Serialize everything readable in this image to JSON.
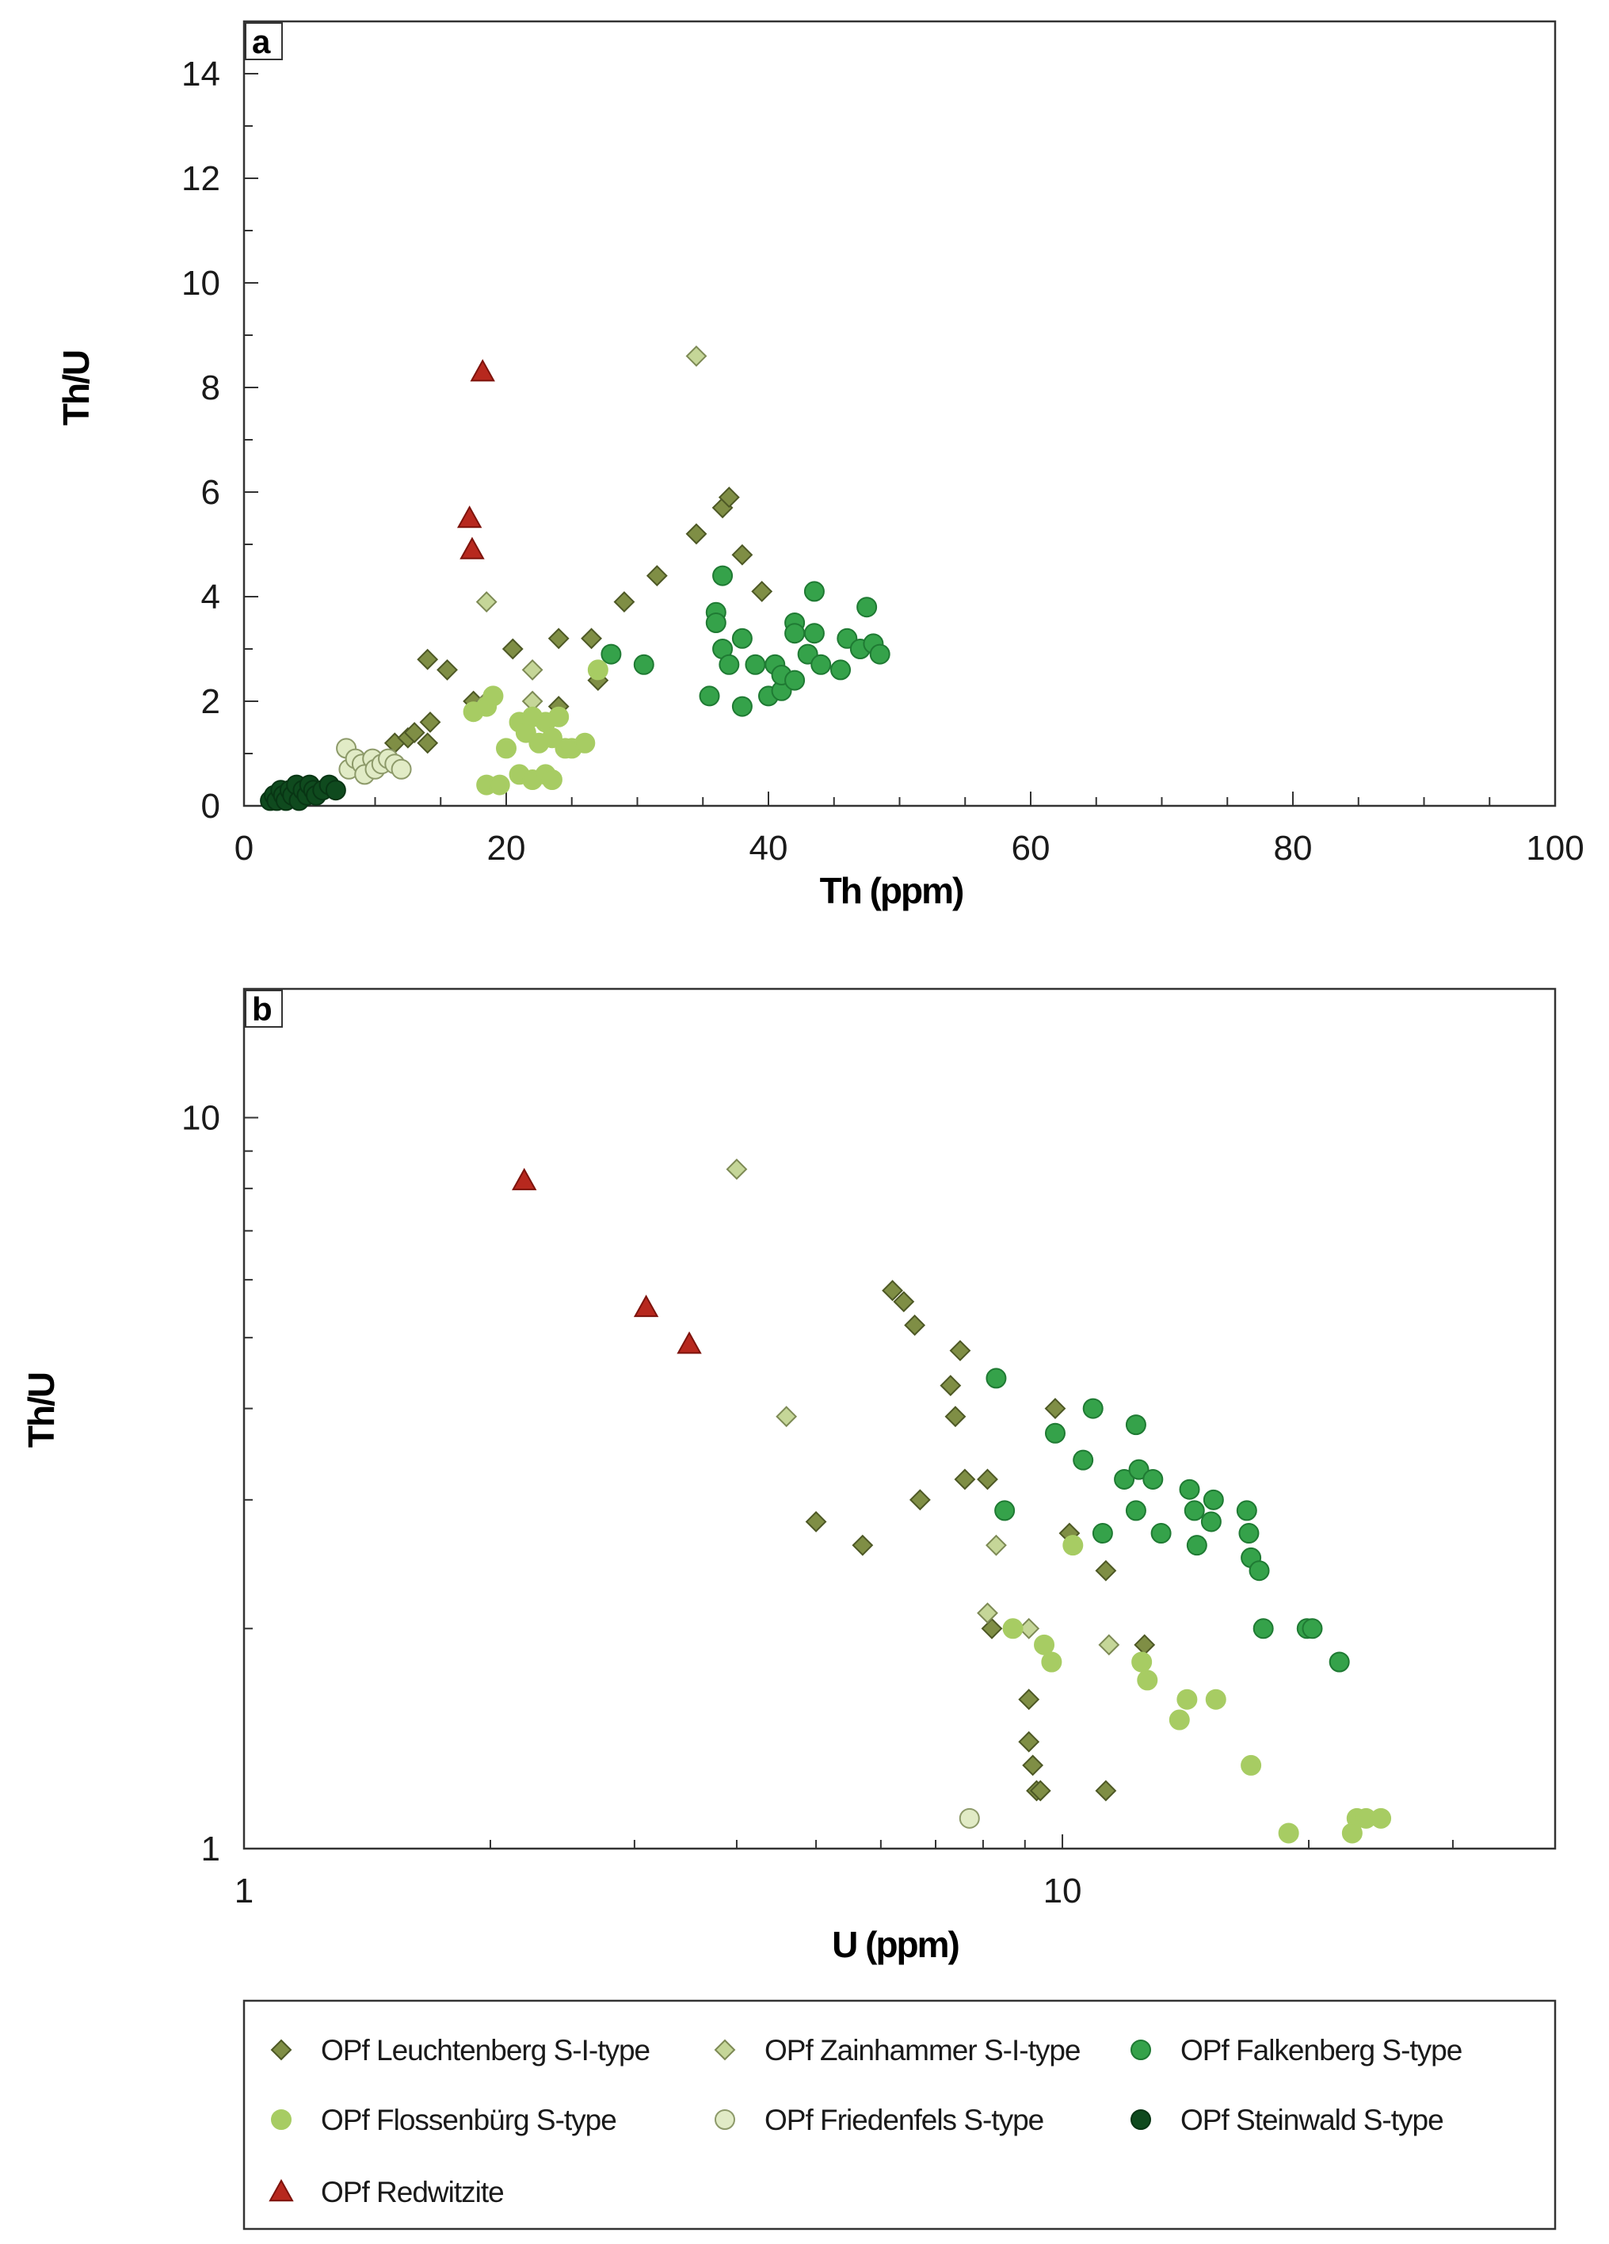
{
  "chart_data": [
    {
      "panel": "a",
      "type": "scatter",
      "xlabel": "Th (ppm)",
      "ylabel": "Th/U",
      "xscale": "linear",
      "yscale": "linear",
      "xlim": [
        0,
        100
      ],
      "ylim": [
        0,
        15
      ],
      "xticks": [
        0,
        20,
        40,
        60,
        80,
        100
      ],
      "xtick_labels": [
        "0",
        "20",
        "40",
        "60",
        "80",
        "100"
      ],
      "yticks": [
        0,
        2,
        4,
        6,
        8,
        10,
        12,
        14
      ],
      "ytick_labels": [
        "0",
        "2",
        "4",
        "6",
        "8",
        "10",
        "12",
        "14"
      ],
      "series": [
        {
          "name": "OPf Leuchtenberg S-I-type",
          "marker": "diamond",
          "points": [
            [
              11.5,
              1.2
            ],
            [
              12.5,
              1.3
            ],
            [
              13,
              1.4
            ],
            [
              14,
              1.2
            ],
            [
              14.2,
              1.6
            ],
            [
              14,
              2.8
            ],
            [
              15.5,
              2.6
            ],
            [
              17.5,
              2.0
            ],
            [
              18.5,
              2.0
            ],
            [
              20.5,
              3.0
            ],
            [
              24,
              3.2
            ],
            [
              24,
              1.9
            ],
            [
              26.5,
              3.2
            ],
            [
              27,
              2.4
            ],
            [
              29,
              3.9
            ],
            [
              31.5,
              4.4
            ],
            [
              34.5,
              5.2
            ],
            [
              36.5,
              5.7
            ],
            [
              37,
              5.9
            ],
            [
              38,
              4.8
            ],
            [
              39.5,
              4.1
            ]
          ]
        },
        {
          "name": "OPf Zainhammer S-I-type",
          "marker": "diamond",
          "points": [
            [
              34.5,
              8.6
            ],
            [
              18.5,
              3.9
            ],
            [
              22,
              2.6
            ],
            [
              22,
              2.0
            ],
            [
              18.5,
              2.0
            ]
          ]
        },
        {
          "name": "OPf Falkenberg S-type",
          "marker": "circle",
          "points": [
            [
              28,
              2.9
            ],
            [
              30.5,
              2.7
            ],
            [
              35.5,
              2.1
            ],
            [
              36,
              3.7
            ],
            [
              36,
              3.5
            ],
            [
              36.5,
              4.4
            ],
            [
              36.5,
              3.0
            ],
            [
              37,
              2.7
            ],
            [
              38,
              3.2
            ],
            [
              38,
              1.9
            ],
            [
              39,
              2.7
            ],
            [
              40,
              2.1
            ],
            [
              40.5,
              2.7
            ],
            [
              41,
              2.2
            ],
            [
              41,
              2.5
            ],
            [
              42,
              3.5
            ],
            [
              42,
              3.3
            ],
            [
              42,
              2.4
            ],
            [
              43,
              2.9
            ],
            [
              43.5,
              4.1
            ],
            [
              43.5,
              3.3
            ],
            [
              44,
              2.7
            ],
            [
              45.5,
              2.6
            ],
            [
              46,
              3.2
            ],
            [
              47,
              3.0
            ],
            [
              47.5,
              3.8
            ],
            [
              48,
              3.1
            ],
            [
              48.5,
              2.9
            ]
          ]
        },
        {
          "name": "OPf Flossenbürg S-type",
          "marker": "circle",
          "points": [
            [
              17.5,
              1.8
            ],
            [
              18.5,
              1.9
            ],
            [
              19,
              2.1
            ],
            [
              20,
              1.1
            ],
            [
              21,
              1.6
            ],
            [
              21.5,
              1.4
            ],
            [
              22,
              1.7
            ],
            [
              22.5,
              1.2
            ],
            [
              23,
              1.6
            ],
            [
              23.5,
              1.3
            ],
            [
              24,
              1.7
            ],
            [
              24.5,
              1.1
            ],
            [
              25,
              1.1
            ],
            [
              26,
              1.2
            ],
            [
              27,
              2.6
            ],
            [
              18.5,
              0.4
            ],
            [
              19.5,
              0.4
            ],
            [
              21,
              0.6
            ],
            [
              22,
              0.5
            ],
            [
              23,
              0.6
            ],
            [
              23.5,
              0.5
            ]
          ]
        },
        {
          "name": "OPf Friedenfels S-type",
          "marker": "circle",
          "points": [
            [
              7.8,
              1.1
            ],
            [
              8,
              0.7
            ],
            [
              8.5,
              0.9
            ],
            [
              9,
              0.8
            ],
            [
              9.2,
              0.6
            ],
            [
              9.8,
              0.9
            ],
            [
              10,
              0.7
            ],
            [
              10.5,
              0.8
            ],
            [
              11,
              0.9
            ],
            [
              11.5,
              0.8
            ],
            [
              12,
              0.7
            ]
          ]
        },
        {
          "name": "OPf Steinwald S-type",
          "marker": "circle",
          "points": [
            [
              2,
              0.1
            ],
            [
              2.3,
              0.2
            ],
            [
              2.5,
              0.1
            ],
            [
              2.8,
              0.3
            ],
            [
              3,
              0.2
            ],
            [
              3.2,
              0.1
            ],
            [
              3.5,
              0.3
            ],
            [
              3.7,
              0.2
            ],
            [
              4,
              0.4
            ],
            [
              4.2,
              0.1
            ],
            [
              4.5,
              0.3
            ],
            [
              4.8,
              0.2
            ],
            [
              5,
              0.4
            ],
            [
              5.3,
              0.3
            ],
            [
              5.5,
              0.2
            ],
            [
              6,
              0.3
            ],
            [
              6.5,
              0.4
            ],
            [
              7,
              0.3
            ]
          ]
        },
        {
          "name": "OPf Redwitzite",
          "marker": "triangle",
          "points": [
            [
              18.2,
              8.3
            ],
            [
              17.2,
              5.5
            ],
            [
              17.4,
              4.9
            ]
          ]
        }
      ]
    },
    {
      "panel": "b",
      "type": "scatter",
      "xlabel": "U (ppm)",
      "ylabel": "Th/U",
      "xscale": "log",
      "yscale": "log",
      "xlim": [
        1,
        40
      ],
      "ylim": [
        1,
        15
      ],
      "xticks": [
        1,
        10
      ],
      "xtick_labels": [
        "1",
        "10"
      ],
      "yticks": [
        1,
        10
      ],
      "ytick_labels": [
        "1",
        "10"
      ],
      "series": [
        {
          "name": "OPf Leuchtenberg S-I-type",
          "marker": "diamond",
          "points": [
            [
              6.2,
              5.8
            ],
            [
              6.4,
              5.6
            ],
            [
              6.6,
              5.2
            ],
            [
              7.5,
              4.8
            ],
            [
              7.3,
              4.3
            ],
            [
              7.4,
              3.9
            ],
            [
              8.1,
              3.2
            ],
            [
              7.6,
              3.2
            ],
            [
              6.7,
              3.0
            ],
            [
              5.0,
              2.8
            ],
            [
              5.7,
              2.6
            ],
            [
              9.8,
              4.0
            ],
            [
              10.2,
              2.7
            ],
            [
              11.3,
              2.4
            ],
            [
              8.2,
              2.0
            ],
            [
              12.6,
              1.9
            ],
            [
              9.1,
              1.6
            ],
            [
              9.1,
              1.4
            ],
            [
              9.2,
              1.3
            ],
            [
              9.3,
              1.2
            ],
            [
              9.4,
              1.2
            ],
            [
              11.3,
              1.2
            ]
          ]
        },
        {
          "name": "OPf Zainhammer S-I-type",
          "marker": "diamond",
          "points": [
            [
              4.0,
              8.5
            ],
            [
              4.6,
              3.9
            ],
            [
              8.3,
              2.6
            ],
            [
              8.1,
              2.1
            ],
            [
              9.1,
              2.0
            ],
            [
              11.4,
              1.9
            ]
          ]
        },
        {
          "name": "OPf Falkenberg S-type",
          "marker": "circle",
          "points": [
            [
              8.3,
              4.4
            ],
            [
              9.8,
              3.7
            ],
            [
              10.9,
              4.0
            ],
            [
              10.6,
              3.4
            ],
            [
              12.3,
              3.8
            ],
            [
              11.9,
              3.2
            ],
            [
              12.4,
              3.3
            ],
            [
              12.9,
              3.2
            ],
            [
              12.3,
              2.9
            ],
            [
              8.5,
              2.9
            ],
            [
              11.2,
              2.7
            ],
            [
              13.2,
              2.7
            ],
            [
              14.3,
              3.1
            ],
            [
              14.5,
              2.9
            ],
            [
              15.3,
              3.0
            ],
            [
              15.2,
              2.8
            ],
            [
              14.6,
              2.6
            ],
            [
              16.8,
              2.9
            ],
            [
              16.9,
              2.7
            ],
            [
              17.0,
              2.5
            ],
            [
              17.4,
              2.4
            ],
            [
              17.6,
              2.0
            ],
            [
              19.9,
              2.0
            ],
            [
              20.2,
              2.0
            ],
            [
              21.8,
              1.8
            ]
          ]
        },
        {
          "name": "OPf Flossenbürg S-type",
          "marker": "circle",
          "points": [
            [
              8.7,
              2.0
            ],
            [
              9.5,
              1.9
            ],
            [
              9.7,
              1.8
            ],
            [
              10.3,
              2.6
            ],
            [
              12.5,
              1.8
            ],
            [
              12.7,
              1.7
            ],
            [
              13.9,
              1.5
            ],
            [
              14.2,
              1.6
            ],
            [
              15.4,
              1.6
            ],
            [
              17.0,
              1.3
            ],
            [
              18.9,
              1.05
            ],
            [
              22.9,
              1.1
            ],
            [
              23.5,
              1.1
            ],
            [
              24.5,
              1.1
            ],
            [
              22.6,
              1.05
            ]
          ]
        },
        {
          "name": "OPf Friedenfels S-type",
          "marker": "circle",
          "points": [
            [
              7.7,
              1.1
            ]
          ]
        },
        {
          "name": "OPf Redwitzite",
          "marker": "triangle",
          "points": [
            [
              2.2,
              8.2
            ],
            [
              3.1,
              5.5
            ],
            [
              3.5,
              4.9
            ]
          ]
        }
      ]
    }
  ],
  "legend": {
    "items": [
      {
        "label": "OPf Leuchtenberg S-I-type",
        "marker": "diamond",
        "fill": "#7f8e45",
        "stroke": "#4d5825"
      },
      {
        "label": "OPf Zainhammer S-I-type",
        "marker": "diamond",
        "fill": "#c5d698",
        "stroke": "#7d8a55"
      },
      {
        "label": "OPf Falkenberg S-type",
        "marker": "circle",
        "fill": "#35a24a",
        "stroke": "#1f7a33"
      },
      {
        "label": "OPf Flossenbürg S-type",
        "marker": "circle",
        "fill": "#a7cc63",
        "stroke": "#a7cc63"
      },
      {
        "label": "OPf Friedenfels S-type",
        "marker": "circle",
        "fill": "#e1ebc6",
        "stroke": "#8d9a6a"
      },
      {
        "label": "OPf Steinwald S-type",
        "marker": "circle",
        "fill": "#0f4a1e",
        "stroke": "#083514"
      },
      {
        "label": "OPf Redwitzite",
        "marker": "triangle",
        "fill": "#b7281e",
        "stroke": "#7d130c"
      }
    ]
  }
}
